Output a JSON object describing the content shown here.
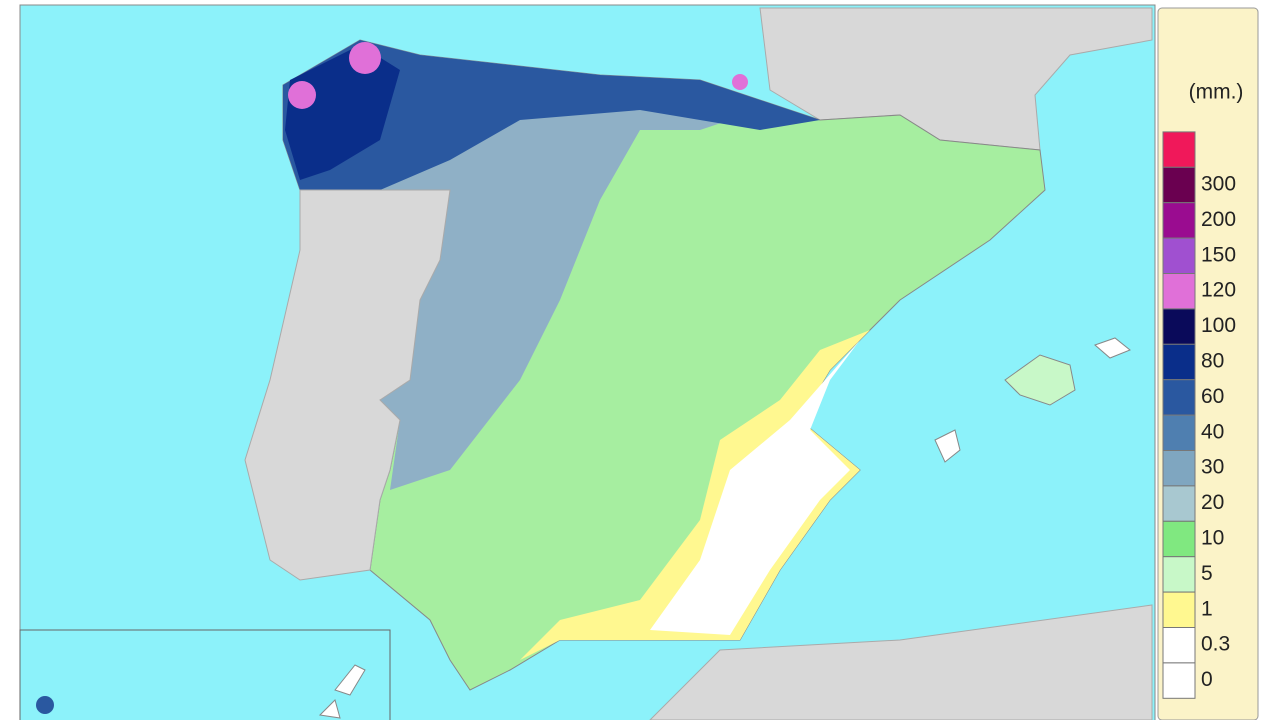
{
  "legend": {
    "unit": "(mm.)",
    "top_color": "#f0185a",
    "items": [
      {
        "label": "300",
        "color": "#6a0050"
      },
      {
        "label": "200",
        "color": "#9a0c90"
      },
      {
        "label": "150",
        "color": "#a050d0"
      },
      {
        "label": "120",
        "color": "#e070d8"
      },
      {
        "label": "100",
        "color": "#0a0a5a"
      },
      {
        "label": "80",
        "color": "#0a2e8a"
      },
      {
        "label": "60",
        "color": "#2a58a0"
      },
      {
        "label": "40",
        "color": "#4f7fb0"
      },
      {
        "label": "30",
        "color": "#7fa6c0"
      },
      {
        "label": "20",
        "color": "#a8c8d0"
      },
      {
        "label": "10",
        "color": "#80e880"
      },
      {
        "label": "5",
        "color": "#c8f8c8"
      },
      {
        "label": "1",
        "color": "#fff890"
      },
      {
        "label": "0.3",
        "color": "#ffffff"
      },
      {
        "label": "0",
        "color": "#ffffff"
      }
    ]
  }
}
